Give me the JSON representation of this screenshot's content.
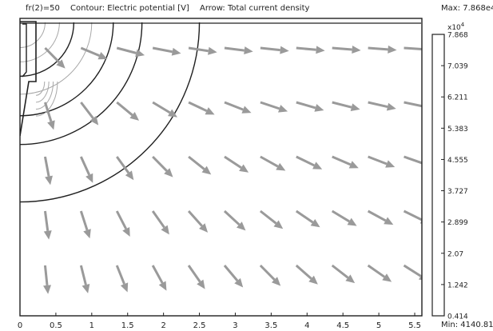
{
  "header": {
    "param": "fr(2)=50",
    "contour": "Contour: Electric potential [V]",
    "arrow": "Arrow: Total current density",
    "max": "Max: 7.868e4",
    "min": "Min: 4140.811"
  },
  "axis": {
    "x_ticks": [
      "0",
      "0.5",
      "1",
      "1.5",
      "2",
      "2.5",
      "3",
      "3.5",
      "4",
      "4.5",
      "5",
      "5.5"
    ],
    "x_range": [
      0,
      5.6
    ]
  },
  "colorbar": {
    "exponent_label": "x10",
    "exponent_power": "4",
    "ticks": [
      "7.868",
      "7.039",
      "6.211",
      "5.383",
      "4.555",
      "3.727",
      "2.899",
      "2.07",
      "1.242",
      "0.414"
    ]
  },
  "contours": {
    "radii": [
      0.35,
      0.55,
      0.75,
      1.0,
      1.3,
      1.7,
      2.5
    ],
    "dark_color": "#202020",
    "light_color": "#a8a8a8"
  },
  "arrows": {
    "color": "#9a9a9a"
  }
}
